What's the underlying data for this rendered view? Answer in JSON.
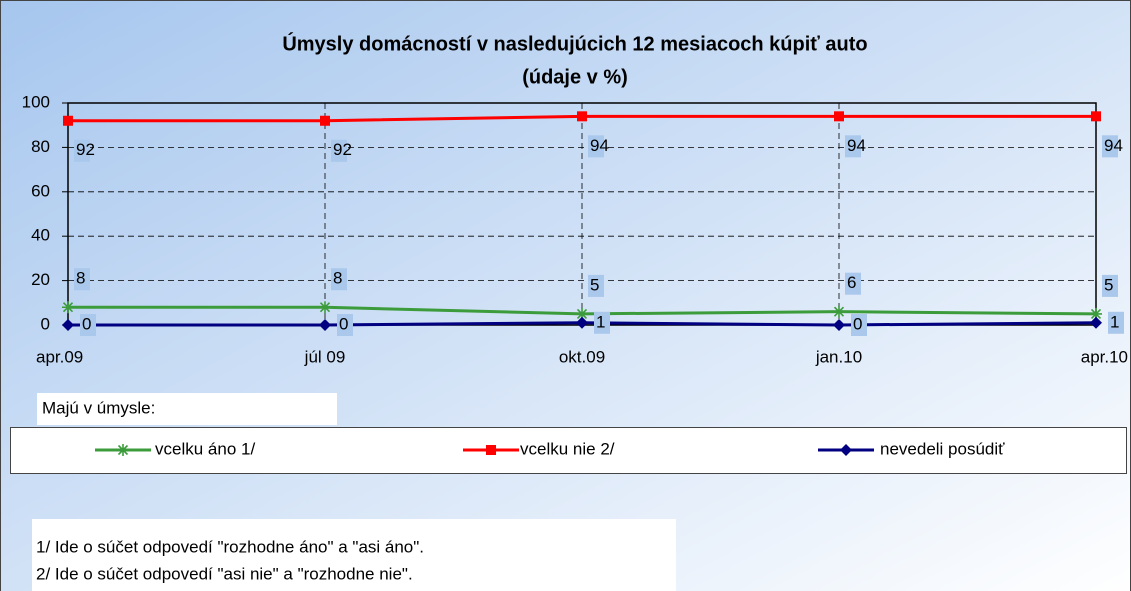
{
  "chart_data": {
    "type": "line",
    "title": "Úmysly domácností v nasledujúcich 12 mesiacoch kúpiť auto",
    "subtitle": "(údaje v %)",
    "categories": [
      "apr.09",
      "júl 09",
      "okt.09",
      "jan.10",
      "apr.10"
    ],
    "series": [
      {
        "name": "vcelku áno 1/",
        "color": "#3c9c3c",
        "marker": "star",
        "values": [
          8,
          8,
          5,
          6,
          5
        ]
      },
      {
        "name": "vcelku nie 2/",
        "color": "#ff0000",
        "marker": "square",
        "values": [
          92,
          92,
          94,
          94,
          94
        ]
      },
      {
        "name": "nevedeli posúdiť",
        "color": "#000080",
        "marker": "diamond",
        "values": [
          0,
          0,
          1,
          0,
          1
        ]
      }
    ],
    "ylim": [
      0,
      100
    ],
    "yticks": [
      0,
      20,
      40,
      60,
      80,
      100
    ],
    "grid": true,
    "legend_title": "Majú v úmysle:",
    "notes": [
      "1/ Ide o súčet odpovedí \"rozhodne áno\" a \"asi áno\".",
      "2/ Ide o súčet odpovedí \"asi nie\" a \"rozhodne nie\"."
    ]
  }
}
